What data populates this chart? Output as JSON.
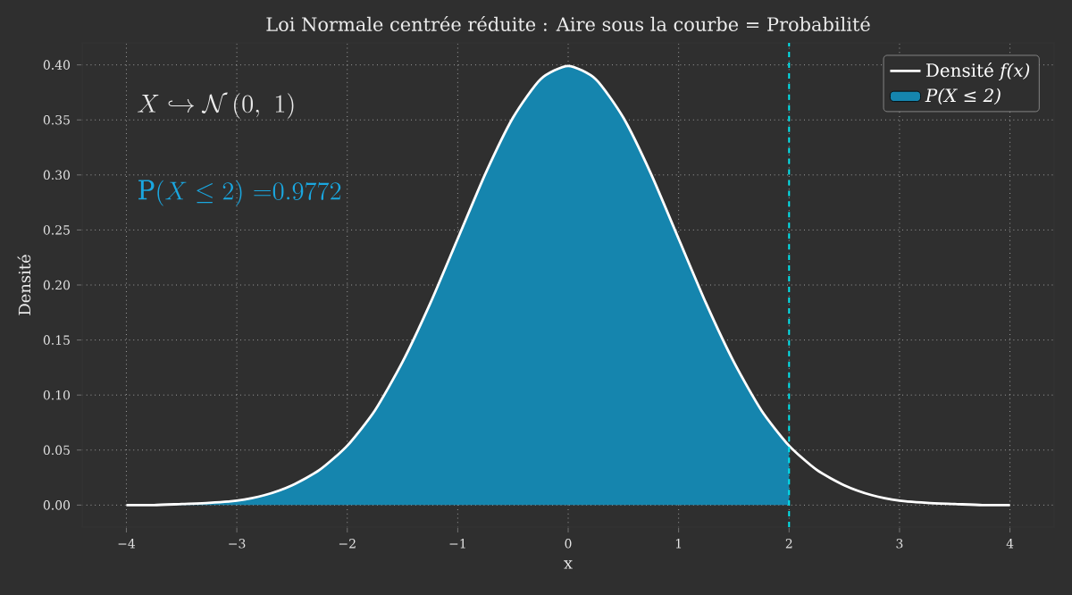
{
  "chart_data": {
    "type": "line",
    "title": "Loi Normale centrée réduite : Aire sous la courbe = Probabilité",
    "xlabel": "x",
    "ylabel": "Densité",
    "xlim": [
      -4.4,
      4.4
    ],
    "ylim": [
      -0.02,
      0.42
    ],
    "xticks": [
      {
        "value": -4,
        "label": "−4"
      },
      {
        "value": -3,
        "label": "−3"
      },
      {
        "value": -2,
        "label": "−2"
      },
      {
        "value": -1,
        "label": "−1"
      },
      0,
      1,
      2,
      3,
      4
    ],
    "yticks": [
      {
        "value": 0,
        "label": "0.00"
      },
      0.05,
      {
        "value": 0.1,
        "label": "0.10"
      },
      0.15,
      {
        "value": 0.2,
        "label": "0.20"
      },
      0.25,
      {
        "value": 0.3,
        "label": "0.30"
      },
      0.35,
      {
        "value": 0.4,
        "label": "0.40"
      }
    ],
    "grid": true,
    "legend": "top right",
    "series": [
      {
        "name": "Densité *f(x)*",
        "color": "#ffffff",
        "x": [
          -4,
          -3.75,
          -3.5,
          -3.25,
          -3,
          -2.75,
          -2.5,
          -2.25,
          -2,
          -1.75,
          -1.5,
          -1.25,
          -1,
          -0.75,
          -0.5,
          -0.25,
          0,
          0.25,
          0.5,
          0.75,
          1,
          1.25,
          1.5,
          1.75,
          2,
          2.25,
          2.5,
          2.75,
          3,
          3.25,
          3.5,
          3.75,
          4
        ],
        "values": [
          0.0,
          0.0,
          0.001,
          0.002,
          0.004,
          0.009,
          0.018,
          0.032,
          0.054,
          0.086,
          0.13,
          0.183,
          0.242,
          0.301,
          0.352,
          0.387,
          0.399,
          0.387,
          0.352,
          0.301,
          0.242,
          0.183,
          0.13,
          0.086,
          0.054,
          0.032,
          0.018,
          0.009,
          0.004,
          0.002,
          0.001,
          0.0,
          0.0
        ]
      },
      {
        "name": "*P(X ≤ 2)*",
        "type": "area",
        "color": "#1585ae",
        "x": [
          -4,
          -3.75,
          -3.5,
          -3.25,
          -3,
          -2.75,
          -2.5,
          -2.25,
          -2,
          -1.75,
          -1.5,
          -1.25,
          -1,
          -0.75,
          -0.5,
          -0.25,
          0,
          0.25,
          0.5,
          0.75,
          1,
          1.25,
          1.5,
          1.75,
          2
        ],
        "values": [
          0.0,
          0.0,
          0.001,
          0.002,
          0.004,
          0.009,
          0.018,
          0.032,
          0.054,
          0.086,
          0.13,
          0.183,
          0.242,
          0.301,
          0.352,
          0.387,
          0.399,
          0.387,
          0.352,
          0.301,
          0.242,
          0.183,
          0.13,
          0.086,
          0.054
        ]
      }
    ],
    "ref_lines": [
      {
        "axis": "x",
        "value": 2,
        "color": "#00e5ee",
        "line_style": "dashed"
      }
    ],
    "annotations": [
      "X \\hookrightarrow \\mathcal{N}\\,(0,\\ 1)",
      "\\mathrm{P}(X \\leq 2)\\ {=}0.9772"
    ]
  }
}
